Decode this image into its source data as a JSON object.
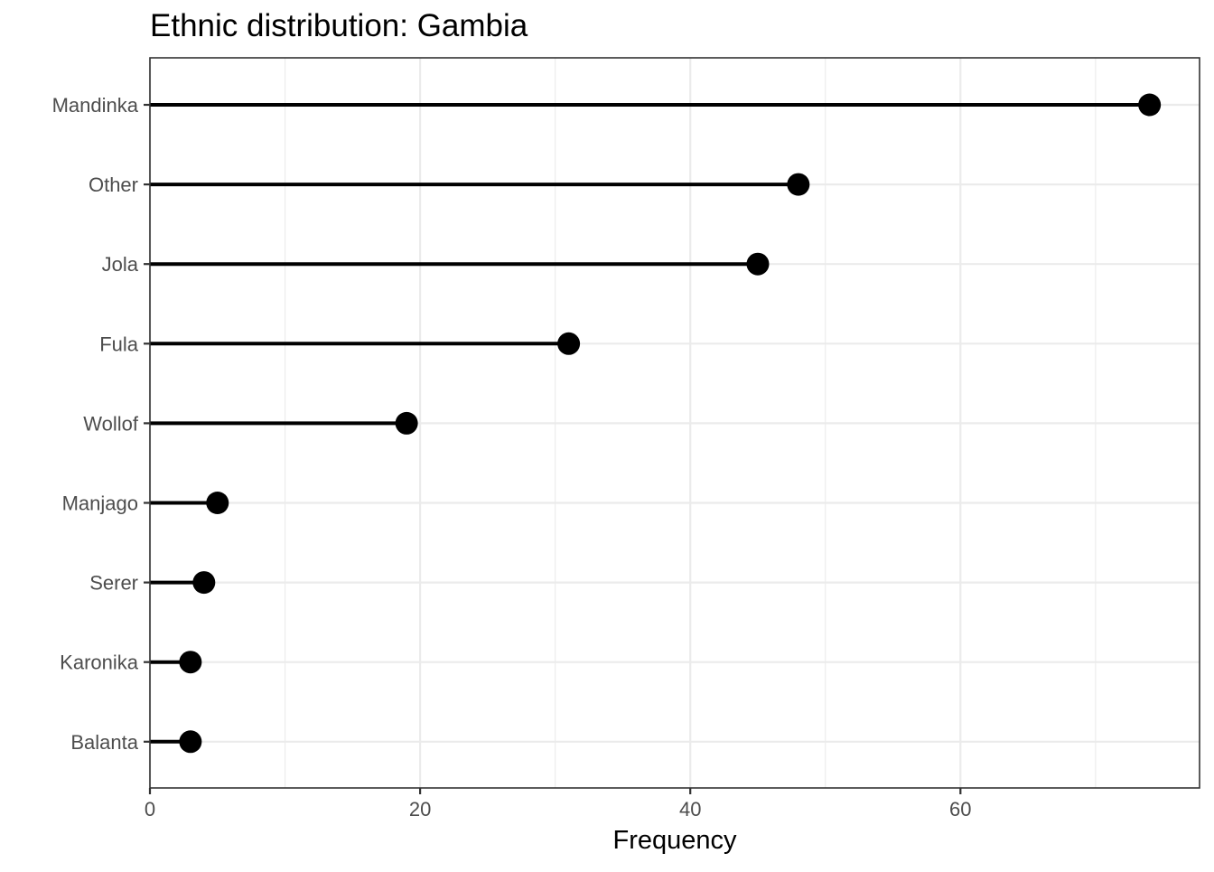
{
  "chart_data": {
    "type": "lollipop",
    "orientation": "horizontal",
    "title": "Ethnic distribution: Gambia",
    "xlabel": "Frequency",
    "ylabel": "",
    "categories": [
      "Mandinka",
      "Other",
      "Jola",
      "Fula",
      "Wollof",
      "Manjago",
      "Serer",
      "Karonika",
      "Balanta"
    ],
    "values": [
      74,
      48,
      45,
      31,
      19,
      5,
      4,
      3,
      3
    ],
    "xlim": [
      0,
      77.7
    ],
    "x_ticks": [
      0,
      20,
      40,
      60
    ],
    "x_minor_ticks": [
      10,
      30,
      50,
      70
    ],
    "grid": true,
    "legend": "none",
    "colors": {
      "marks": "#000000",
      "grid": "#ebebeb",
      "panel_border": "#333333",
      "tick_text": "#4d4d4d"
    }
  }
}
